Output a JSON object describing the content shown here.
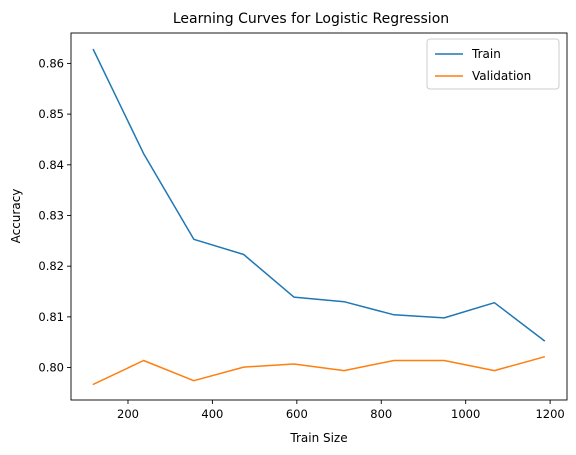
{
  "chart_data": {
    "type": "line",
    "title": "Learning Curves for Logistic Regression",
    "xlabel": "Train Size",
    "ylabel": "Accuracy",
    "x": [
      118,
      237,
      356,
      474,
      593,
      712,
      830,
      949,
      1068,
      1186
    ],
    "series": [
      {
        "name": "Train",
        "color": "#1f77b4",
        "values": [
          0.8627,
          0.8422,
          0.8253,
          0.8223,
          0.8139,
          0.813,
          0.8104,
          0.8098,
          0.8128,
          0.8053
        ]
      },
      {
        "name": "Validation",
        "color": "#ff7f0e",
        "values": [
          0.7967,
          0.8014,
          0.7974,
          0.8001,
          0.8007,
          0.7994,
          0.8014,
          0.8014,
          0.7994,
          0.8021
        ]
      }
    ],
    "xlim": [
      65,
      1240
    ],
    "ylim": [
      0.7936,
      0.866
    ],
    "xticks": [
      200,
      400,
      600,
      800,
      1000,
      1200
    ],
    "yticks": [
      0.8,
      0.81,
      0.82,
      0.83,
      0.84,
      0.85,
      0.86
    ],
    "grid": false,
    "legend_position": "top-right"
  }
}
